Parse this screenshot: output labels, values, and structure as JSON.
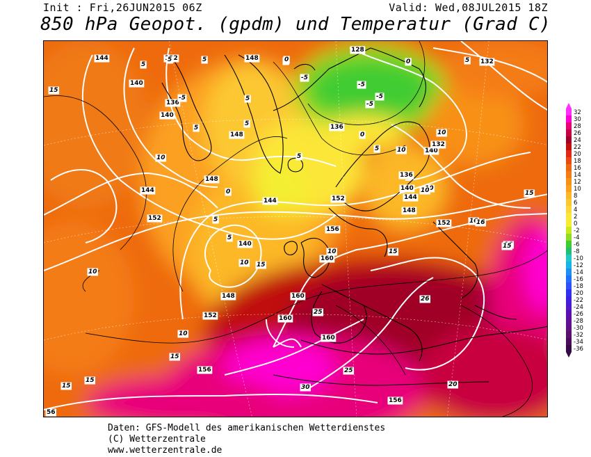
{
  "header": {
    "init": "Init : Fri,26JUN2015 06Z",
    "valid": "Valid: Wed,08JUL2015 18Z",
    "title": "850 hPa Geopot. (gpdm) und Temperatur (Grad C)"
  },
  "legend": {
    "labels": [
      "32",
      "30",
      "28",
      "26",
      "24",
      "22",
      "20",
      "18",
      "16",
      "14",
      "12",
      "10",
      "8",
      "6",
      "4",
      "2",
      "0",
      "-2",
      "-4",
      "-6",
      "-8",
      "-10",
      "-12",
      "-14",
      "-16",
      "-18",
      "-20",
      "-22",
      "-24",
      "-26",
      "-28",
      "-30",
      "-32",
      "-34",
      "-36"
    ],
    "colors": [
      "#ff30ff",
      "#ff00d0",
      "#e8007a",
      "#c80040",
      "#a00028",
      "#c01010",
      "#e02818",
      "#e84a10",
      "#ee6a10",
      "#f47c14",
      "#f89018",
      "#fca020",
      "#fcb828",
      "#fcc830",
      "#fcd834",
      "#fce638",
      "#f4ee30",
      "#c8e820",
      "#90dc20",
      "#40cc30",
      "#20c070",
      "#20c8c8",
      "#18b4e8",
      "#2090f0",
      "#2070ff",
      "#3050f8",
      "#3030f0",
      "#4020e0",
      "#5018c8",
      "#5a10b0",
      "#601098",
      "#601080",
      "#58106c",
      "#480c5a",
      "#380848"
    ]
  },
  "map": {
    "geopotential_labels": [
      "144",
      "132",
      "148",
      "128",
      "132",
      "140",
      "136",
      "140",
      "148",
      "136",
      "148",
      "144",
      "140",
      "152",
      "144",
      "132",
      "136",
      "140",
      "144",
      "148",
      "152",
      "140",
      "156",
      "152",
      "160",
      "148",
      "160",
      "152",
      "160",
      "160",
      "156",
      "156",
      "56"
    ],
    "temperature_labels": [
      "15",
      "5",
      "5",
      "0",
      "5",
      "-5",
      "-5",
      "-5",
      "-5",
      "0",
      "5",
      "-5",
      "5",
      "0",
      "5",
      "5",
      "0",
      "10",
      "10",
      "5",
      "10",
      "5",
      "10",
      "0",
      "10",
      "5",
      "5",
      "15",
      "10",
      "10",
      "15",
      "16",
      "16",
      "16",
      "15",
      "10",
      "15",
      "25",
      "26",
      "10",
      "15",
      "15",
      "25",
      "30",
      "20",
      "15"
    ]
  },
  "footer": {
    "line1": "Daten: GFS-Modell des amerikanischen Wetterdienstes",
    "line2": "(C) Wetterzentrale",
    "line3": "www.wetterzentrale.de"
  }
}
